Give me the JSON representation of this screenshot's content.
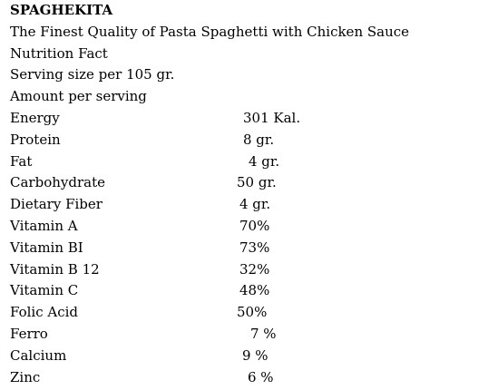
{
  "title": "SPAGHEKITA",
  "subtitle": "The Finest Quality of Pasta Spaghetti with Chicken Sauce",
  "heading": "Nutrition Fact",
  "serving_size": "Serving size per 105 gr.",
  "amount_per_serving": "Amount per serving",
  "nutrients": [
    {
      "label": "Energy",
      "value": "301 Kal."
    },
    {
      "label": "Protein",
      "value": "8 gr."
    },
    {
      "label": "Fat",
      "value": "4 gr."
    },
    {
      "label": "Carbohydrate",
      "value": "50 gr."
    },
    {
      "label": "Dietary Fiber",
      "value": "4 gr."
    },
    {
      "label": "Vitamin A",
      "value": "70%"
    },
    {
      "label": "Vitamin BI",
      "value": "73%"
    },
    {
      "label": "Vitamin B 12",
      "value": "32%"
    },
    {
      "label": "Vitamin C",
      "value": "48%"
    },
    {
      "label": "Folic Acid",
      "value": "50%"
    },
    {
      "label": "Ferro",
      "value": "7 %"
    },
    {
      "label": "Calcium",
      "value": "9 %"
    },
    {
      "label": "Zinc",
      "value": "6 %"
    }
  ]
}
